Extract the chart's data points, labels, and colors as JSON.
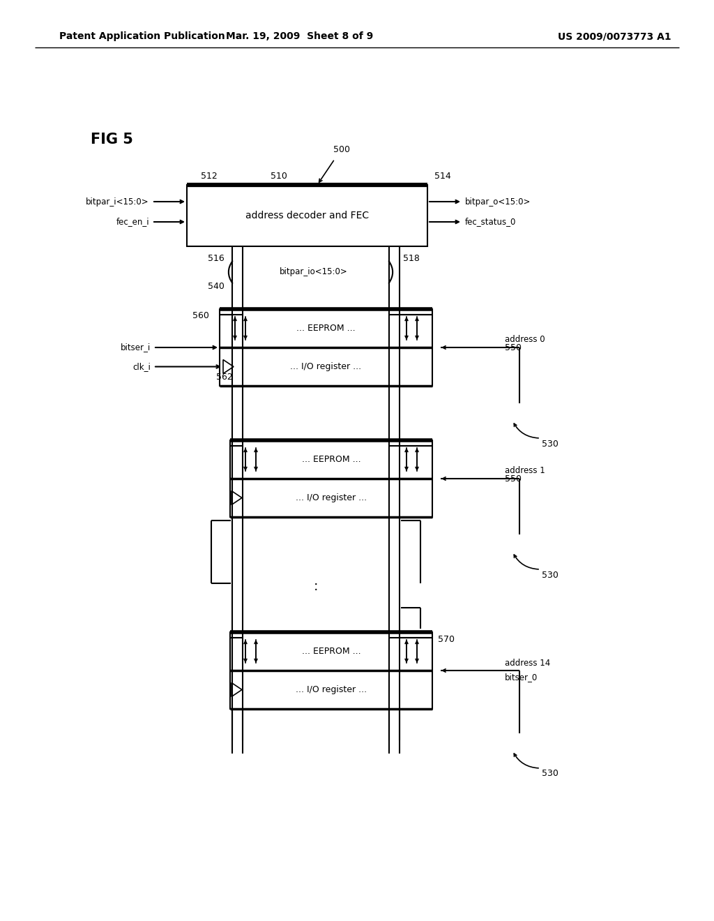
{
  "header_left": "Patent Application Publication",
  "header_mid": "Mar. 19, 2009  Sheet 8 of 9",
  "header_right": "US 2009/0073773 A1",
  "fig_label": "FIG 5",
  "bg_color": "#ffffff",
  "ref_500": "500",
  "ref_510": "510",
  "ref_512": "512",
  "ref_514": "514",
  "ref_516": "516",
  "ref_518": "518",
  "ref_540": "540",
  "ref_550": "550",
  "ref_560": "560",
  "ref_562": "562",
  "ref_530": "530",
  "ref_570": "570",
  "fec_box_label": "address decoder and FEC",
  "eeprom_label": "... EEPROM ...",
  "io_label": "... I/O register ...",
  "bitpar_i": "bitpar_i<15:0>",
  "fec_en_i": "fec_en_i",
  "bitpar_o": "bitpar_o<15:0>",
  "fec_status": "fec_status_0",
  "bitpar_io": "bitpar_io<15:0>",
  "bitser_i": "bitser_i",
  "clk_i": "clk_i",
  "addr0": "address 0",
  "addr1": "address 1",
  "addr14": "address 14",
  "bitser_0": "bitser_0"
}
